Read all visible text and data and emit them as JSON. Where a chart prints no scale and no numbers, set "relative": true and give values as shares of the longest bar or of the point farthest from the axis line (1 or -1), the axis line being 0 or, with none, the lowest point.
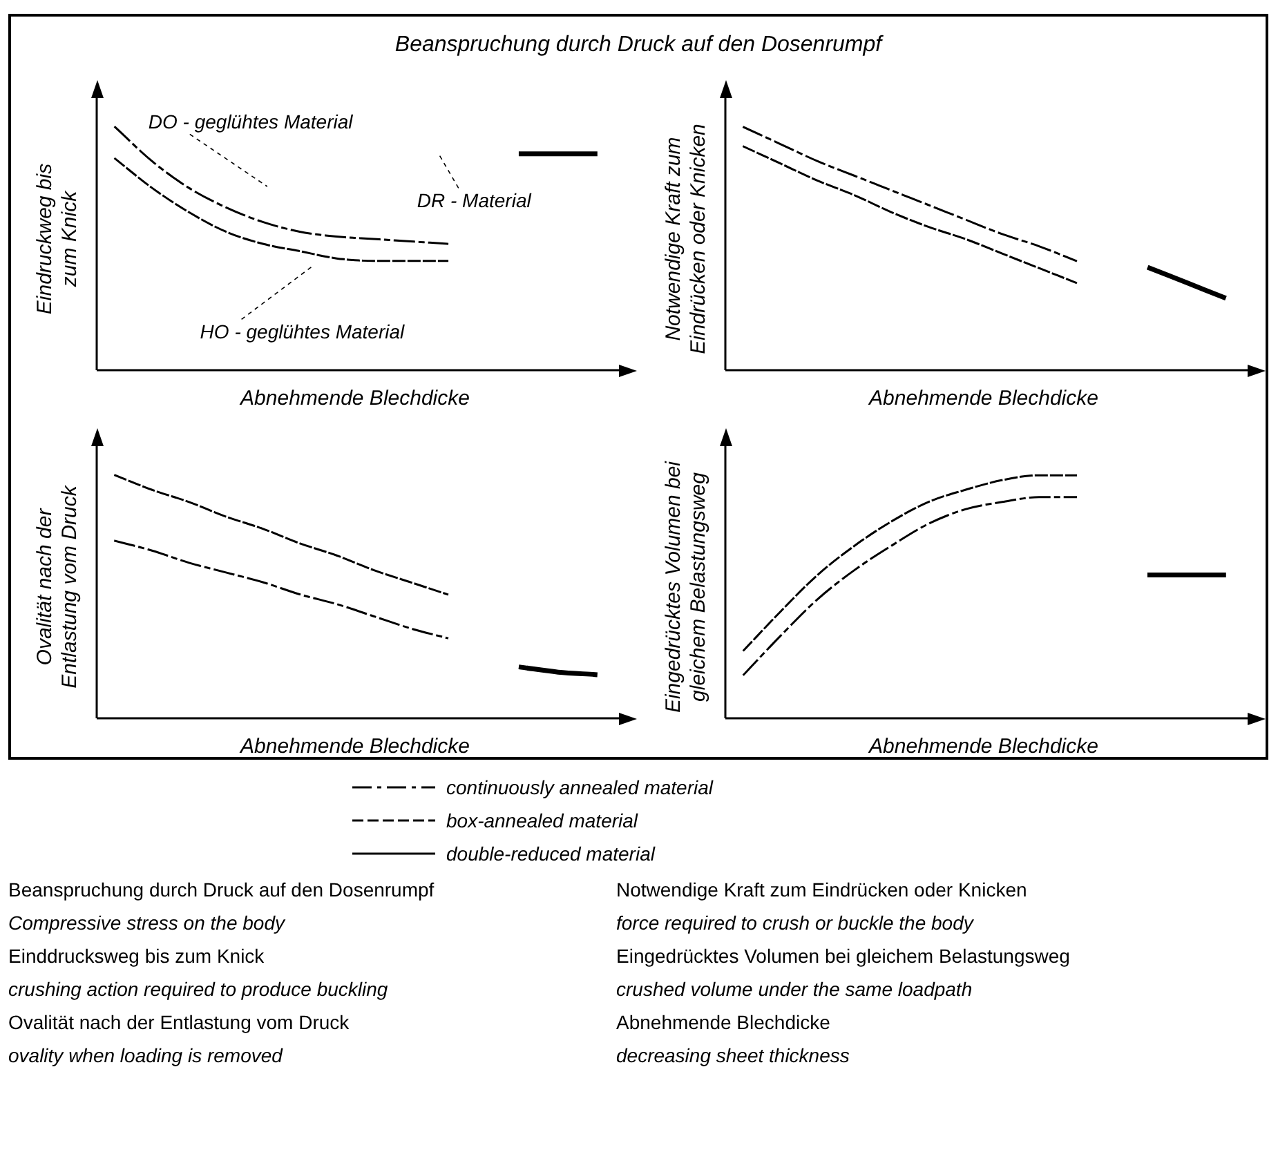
{
  "chart_data": [
    {
      "type": "line",
      "title": "Beanspruchung durch Druck auf den Dosenrumpf",
      "relative": true,
      "xlabel": "Abnehmende Blechdicke",
      "ylabel": "Eindruckweg bis zum Knick",
      "legend": "bottom",
      "categories": [
        null,
        null,
        null,
        null,
        null,
        null,
        null,
        null,
        null,
        null,
        null,
        null,
        null,
        null
      ],
      "series": [
        {
          "name": "continuously annealed material",
          "color": "#000000",
          "line_style": "dashdot",
          "values": [
            1,
            0.86,
            0.75,
            0.67,
            0.61,
            0.57,
            0.55,
            0.54,
            0.53,
            0.52,
            null,
            null,
            null,
            null
          ]
        },
        {
          "name": "box-annealed material",
          "color": "#000000",
          "line_style": "dashed",
          "values": [
            0.87,
            0.75,
            0.65,
            0.57,
            0.52,
            0.49,
            0.46,
            0.45,
            0.45,
            0.45,
            null,
            null,
            null,
            null
          ]
        },
        {
          "name": "double-reduced material",
          "color": "#000000",
          "line_style": "solid",
          "values": [
            null,
            null,
            null,
            null,
            null,
            null,
            null,
            null,
            null,
            null,
            null,
            0.89,
            0.89,
            0.89
          ]
        }
      ],
      "annotations": [
        "DO - geglühtes Material",
        "HO - geglühtes Material",
        "DR - Material"
      ]
    },
    {
      "type": "line",
      "relative": true,
      "xlabel": "Abnehmende Blechdicke",
      "ylabel": "Notwendige Kraft zum Eindrücken oder Knicken",
      "categories": [
        null,
        null,
        null,
        null,
        null,
        null,
        null,
        null,
        null,
        null,
        null,
        null,
        null,
        null
      ],
      "series": [
        {
          "color": "#000000",
          "line_style": "dashdot",
          "values": [
            1,
            0.93,
            0.86,
            0.8,
            0.74,
            0.68,
            0.62,
            0.56,
            0.51,
            0.45,
            null,
            null,
            null,
            null
          ]
        },
        {
          "color": "#000000",
          "line_style": "dashed",
          "values": [
            0.92,
            0.85,
            0.78,
            0.72,
            0.65,
            0.59,
            0.54,
            0.48,
            0.42,
            0.36,
            null,
            null,
            null,
            null
          ]
        },
        {
          "color": "#000000",
          "line_style": "solid",
          "values": [
            null,
            null,
            null,
            null,
            null,
            null,
            null,
            null,
            null,
            null,
            null,
            0.42,
            0.36,
            0.3
          ]
        }
      ]
    },
    {
      "type": "line",
      "relative": true,
      "xlabel": "Abnehmende Blechdicke",
      "ylabel": "Ovalität nach der Entlastung vom Druck",
      "categories": [
        null,
        null,
        null,
        null,
        null,
        null,
        null,
        null,
        null,
        null,
        null,
        null,
        null,
        null
      ],
      "series": [
        {
          "color": "#000000",
          "line_style": "dashdot",
          "values": [
            0.73,
            0.69,
            0.64,
            0.6,
            0.56,
            0.51,
            0.47,
            0.42,
            0.37,
            0.33,
            null,
            null,
            null,
            null
          ]
        },
        {
          "color": "#000000",
          "line_style": "dashed",
          "values": [
            1,
            0.94,
            0.89,
            0.83,
            0.78,
            0.72,
            0.67,
            0.61,
            0.56,
            0.51,
            null,
            null,
            null,
            null
          ]
        },
        {
          "color": "#000000",
          "line_style": "solid",
          "values": [
            null,
            null,
            null,
            null,
            null,
            null,
            null,
            null,
            null,
            null,
            null,
            0.21,
            0.19,
            0.18
          ]
        }
      ]
    },
    {
      "type": "line",
      "relative": true,
      "xlabel": "Abnehmende Blechdicke",
      "ylabel": "Eingedrücktes Volumen bei gleichem Belastungsweg",
      "categories": [
        null,
        null,
        null,
        null,
        null,
        null,
        null,
        null,
        null,
        null,
        null,
        null,
        null,
        null
      ],
      "series": [
        {
          "color": "#000000",
          "line_style": "dashdot",
          "values": [
            0.18,
            0.34,
            0.49,
            0.61,
            0.71,
            0.8,
            0.86,
            0.89,
            0.91,
            0.91,
            null,
            null,
            null,
            null
          ]
        },
        {
          "color": "#000000",
          "line_style": "dashed",
          "values": [
            0.28,
            0.44,
            0.59,
            0.71,
            0.81,
            0.89,
            0.94,
            0.98,
            1,
            1,
            null,
            null,
            null,
            null
          ]
        },
        {
          "color": "#000000",
          "line_style": "solid",
          "values": [
            null,
            null,
            null,
            null,
            null,
            null,
            null,
            null,
            null,
            null,
            null,
            0.59,
            0.59,
            0.59
          ]
        }
      ],
      "annotations": [
        "Beanspruchung durch Druck auf den Dosenrumpf",
        "Compressive stress on the body",
        "Einddrucksweg bis zum Knick",
        "crushing action required to produce buckling",
        "Ovalität nach der Entlastung vom Druck",
        "ovality when loading is removed",
        "Notwendige Kraft zum Eindrücken oder Knicken",
        "force required to crush or buckle the body",
        "Eingedrücktes Volumen bei gleichem Belastungsweg",
        "crushed volume under the same loadpath",
        "Abnehmende Blechdicke",
        "decreasing sheet thickness"
      ]
    }
  ]
}
